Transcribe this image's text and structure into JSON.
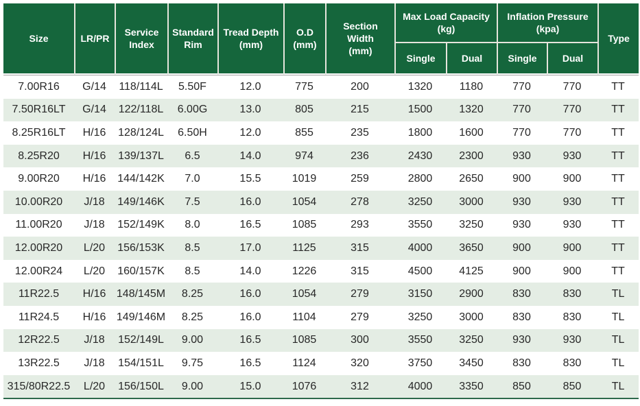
{
  "colors": {
    "header_bg": "#15663C",
    "header_text": "#FFFFFF",
    "row_stripe": "#E4EDE4",
    "row_bg": "#FFFFFF",
    "body_text": "#272727",
    "header_divider": "#E7E5DD",
    "table_bottom_border": "#2D6A4B"
  },
  "header": {
    "size": "Size",
    "lr_pr": "LR/PR",
    "service_index": "Service\nIndex",
    "standard_rim": "Standard\nRim",
    "tread_depth": "Tread Depth\n(mm)",
    "od": "O.D\n(mm)",
    "section_width": "Section Width\n(mm)",
    "max_load_group": "Max Load Capacity\n(kg)",
    "inflation_group": "Inflation Pressure\n(kpa)",
    "single": "Single",
    "dual": "Dual",
    "type": "Type"
  },
  "chart_data": {
    "type": "table",
    "title": "",
    "columns": [
      "Size",
      "LR/PR",
      "Service Index",
      "Standard Rim",
      "Tread Depth (mm)",
      "O.D (mm)",
      "Section Width (mm)",
      "Max Load Capacity (kg) Single",
      "Max Load Capacity (kg) Dual",
      "Inflation Pressure (kpa) Single",
      "Inflation Pressure (kpa) Dual",
      "Type"
    ],
    "rows": [
      [
        "7.00R16",
        "G/14",
        "118/114L",
        "5.50F",
        "12.0",
        "775",
        "200",
        "1320",
        "1180",
        "770",
        "770",
        "TT"
      ],
      [
        "7.50R16LT",
        "G/14",
        "122/118L",
        "6.00G",
        "13.0",
        "805",
        "215",
        "1500",
        "1320",
        "770",
        "770",
        "TT"
      ],
      [
        "8.25R16LT",
        "H/16",
        "128/124L",
        "6.50H",
        "12.0",
        "855",
        "235",
        "1800",
        "1600",
        "770",
        "770",
        "TT"
      ],
      [
        "8.25R20",
        "H/16",
        "139/137L",
        "6.5",
        "14.0",
        "974",
        "236",
        "2430",
        "2300",
        "930",
        "930",
        "TT"
      ],
      [
        "9.00R20",
        "H/16",
        "144/142K",
        "7.0",
        "15.5",
        "1019",
        "259",
        "2800",
        "2650",
        "900",
        "900",
        "TT"
      ],
      [
        "10.00R20",
        "J/18",
        "149/146K",
        "7.5",
        "16.0",
        "1054",
        "278",
        "3250",
        "3000",
        "930",
        "930",
        "TT"
      ],
      [
        "11.00R20",
        "J/18",
        "152/149K",
        "8.0",
        "16.5",
        "1085",
        "293",
        "3550",
        "3250",
        "930",
        "930",
        "TT"
      ],
      [
        "12.00R20",
        "L/20",
        "156/153K",
        "8.5",
        "17.0",
        "1125",
        "315",
        "4000",
        "3650",
        "900",
        "900",
        "TT"
      ],
      [
        "12.00R24",
        "L/20",
        "160/157K",
        "8.5",
        "14.0",
        "1226",
        "315",
        "4500",
        "4125",
        "900",
        "900",
        "TT"
      ],
      [
        "11R22.5",
        "H/16",
        "148/145M",
        "8.25",
        "16.0",
        "1054",
        "279",
        "3150",
        "2900",
        "830",
        "830",
        "TL"
      ],
      [
        "11R24.5",
        "H/16",
        "149/146M",
        "8.25",
        "16.0",
        "1104",
        "279",
        "3250",
        "3000",
        "830",
        "830",
        "TL"
      ],
      [
        "12R22.5",
        "J/18",
        "152/149L",
        "9.00",
        "16.5",
        "1085",
        "300",
        "3550",
        "3250",
        "930",
        "930",
        "TL"
      ],
      [
        "13R22.5",
        "J/18",
        "154/151L",
        "9.75",
        "16.5",
        "1124",
        "320",
        "3750",
        "3450",
        "830",
        "830",
        "TL"
      ],
      [
        "315/80R22.5",
        "L/20",
        "156/150L",
        "9.00",
        "15.0",
        "1076",
        "312",
        "4000",
        "3350",
        "850",
        "850",
        "TL"
      ]
    ]
  }
}
